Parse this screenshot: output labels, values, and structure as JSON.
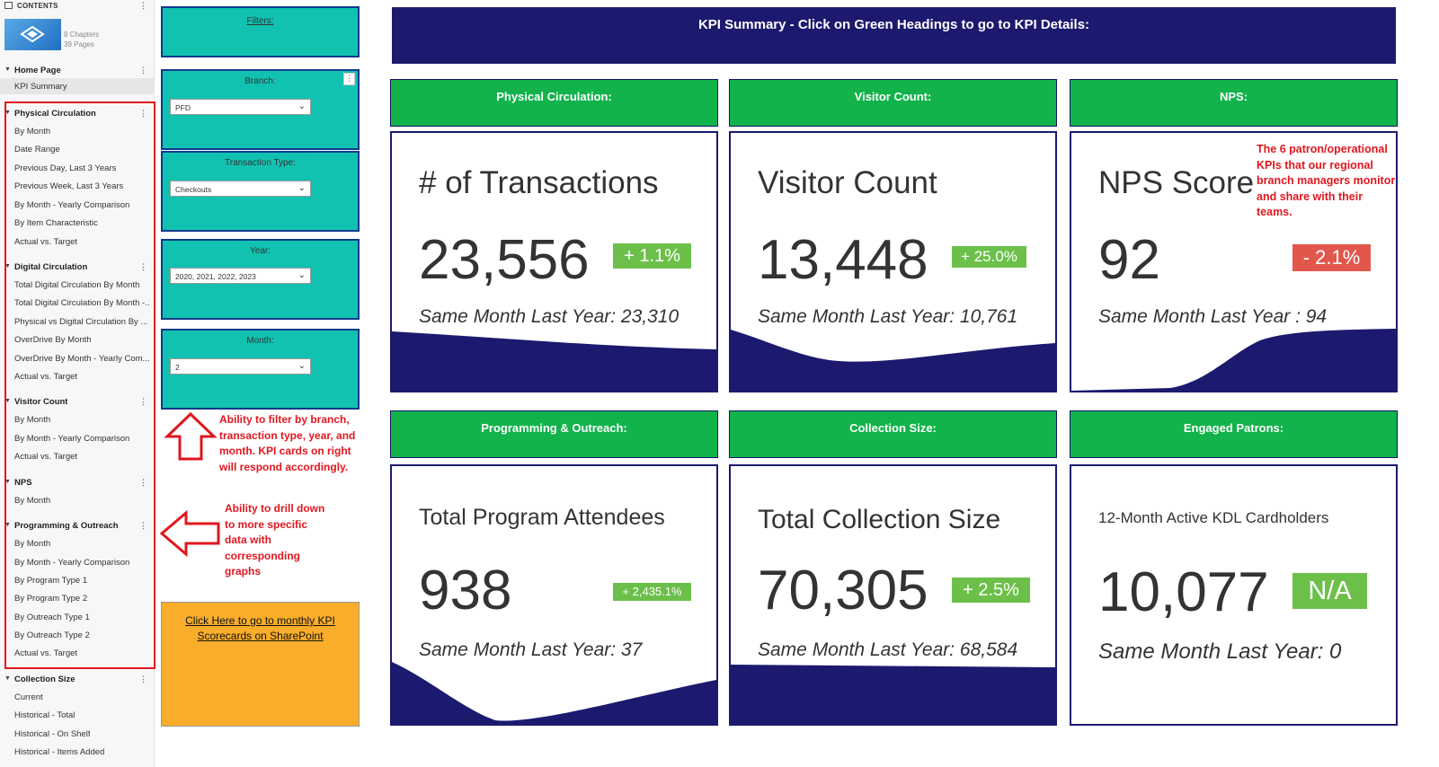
{
  "sidebar": {
    "header": "CONTENTS",
    "book_meta": {
      "chapters": "8 Chapters",
      "pages": "39 Pages"
    },
    "sections": [
      {
        "title": "Home Page",
        "items": [
          "KPI Summary"
        ]
      },
      {
        "title": "Physical Circulation",
        "items": [
          "By Month",
          "Date Range",
          "Previous Day, Last 3 Years",
          "Previous Week, Last 3 Years",
          "By Month - Yearly Comparison",
          "By Item Characteristic",
          "Actual vs. Target"
        ]
      },
      {
        "title": "Digital Circulation",
        "items": [
          "Total Digital Circulation By Month",
          "Total Digital Circulation By Month -...",
          "Physical vs Digital Circulation By ...",
          "OverDrive By Month",
          "OverDrive By Month - Yearly Com...",
          "Actual vs. Target"
        ]
      },
      {
        "title": "Visitor Count",
        "items": [
          "By Month",
          "By Month - Yearly Comparison",
          "Actual vs. Target"
        ]
      },
      {
        "title": "NPS",
        "items": [
          "By Month"
        ]
      },
      {
        "title": "Programming & Outreach",
        "items": [
          "By Month",
          "By Month - Yearly Comparison",
          "By Program Type 1",
          "By Program Type 2",
          "By Outreach Type 1",
          "By Outreach Type 2",
          "Actual vs. Target"
        ]
      },
      {
        "title": "Collection Size",
        "items": [
          "Current",
          "Historical - Total",
          "Historical - On Shelf",
          "Historical - Items Added"
        ]
      }
    ]
  },
  "filters": {
    "title": "Filters:",
    "branch": {
      "label": "Branch:",
      "value": "PFD"
    },
    "transaction_type": {
      "label": "Transaction Type:",
      "value": "Checkouts"
    },
    "year": {
      "label": "Year:",
      "value": "2020, 2021, 2022, 2023"
    },
    "month": {
      "label": "Month:",
      "value": "2"
    },
    "sharepoint_link": "Click Here to go to monthly KPI Scorecards on SharePoint"
  },
  "annotations": {
    "filter_note": "Ability to filter by branch, transaction type, year, and month. KPI cards on right will respond accordingly.",
    "drill_note": "Ability to drill down to more specific data with corresponding graphs",
    "kpi_note": "The 6 patron/operational KPIs that our regional branch managers monitor and share with their teams."
  },
  "main": {
    "header": "KPI Summary - Click on Green Headings to go to KPI Details:",
    "kpis": [
      {
        "heading": "Physical Circulation:",
        "title": "# of Transactions",
        "value": "23,556",
        "change": "+ 1.1%",
        "change_color": "#6cc04a",
        "previous": "Same Month Last Year: 23,310"
      },
      {
        "heading": "Visitor Count:",
        "title": "Visitor Count",
        "value": "13,448",
        "change": "+ 25.0%",
        "change_color": "#6cc04a",
        "previous": "Same Month Last Year: 10,761"
      },
      {
        "heading": "NPS:",
        "title": "NPS Score",
        "value": "92",
        "change": "- 2.1%",
        "change_color": "#e2574c",
        "previous": "Same Month Last Year : 94"
      },
      {
        "heading": "Programming & Outreach:",
        "title": "Total Program Attendees",
        "value": "938",
        "change": "+ 2,435.1%",
        "change_color": "#6cc04a",
        "previous": "Same Month Last Year: 37"
      },
      {
        "heading": "Collection Size:",
        "title": "Total Collection Size",
        "value": "70,305",
        "change": "+ 2.5%",
        "change_color": "#6cc04a",
        "previous": "Same Month Last Year: 68,584"
      },
      {
        "heading": "Engaged Patrons:",
        "title": "12-Month Active KDL Cardholders",
        "value": "10,077",
        "change": "N/A",
        "change_color": "#6cc04a",
        "previous": "Same Month Last Year: 0"
      }
    ]
  },
  "colors": {
    "navy": "#1c1a6e",
    "teal": "#12c2b0",
    "green": "#12b34b",
    "orange": "#f9ad2a",
    "annotation_red": "#e0171f"
  }
}
